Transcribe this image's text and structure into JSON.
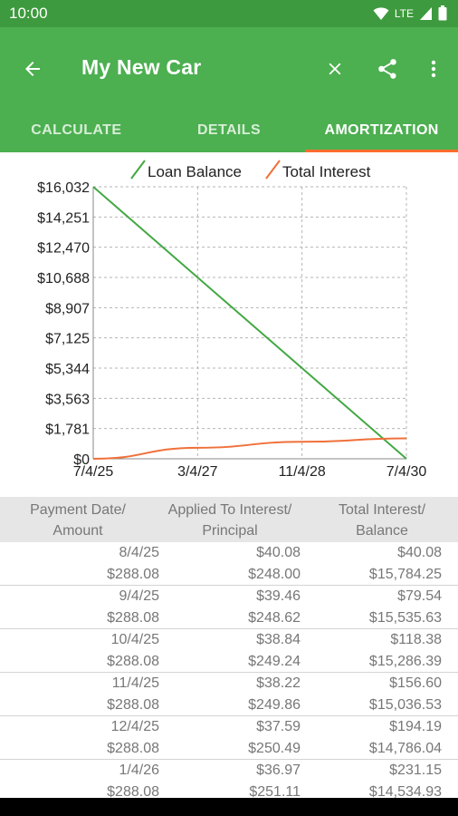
{
  "status": {
    "time": "10:00",
    "network": "LTE"
  },
  "app_bar": {
    "title": "My New Car"
  },
  "tabs": [
    {
      "label": "CALCULATE",
      "active": false
    },
    {
      "label": "DETAILS",
      "active": false
    },
    {
      "label": "AMORTIZATION",
      "active": true
    }
  ],
  "colors": {
    "primary": "#4caf50",
    "status_bar": "#3e9a3e",
    "accent": "#ff6d2d",
    "balance_line": "#43a843",
    "interest_line": "#f0703a"
  },
  "chart_data": {
    "type": "line",
    "legend": [
      "Loan Balance",
      "Total Interest"
    ],
    "legend_position": "top",
    "y_ticks": [
      "$16,032",
      "$14,251",
      "$12,470",
      "$10,688",
      "$8,907",
      "$7,125",
      "$5,344",
      "$3,563",
      "$1,781",
      "$0"
    ],
    "x_ticks": [
      "7/4/25",
      "3/4/27",
      "11/4/28",
      "7/4/30"
    ],
    "ylim": [
      0,
      16032
    ],
    "grid": true,
    "series": [
      {
        "name": "Loan Balance",
        "points": [
          [
            "7/4/25",
            16032
          ],
          [
            "7/4/30",
            0
          ]
        ]
      },
      {
        "name": "Total Interest",
        "points": [
          [
            "7/4/25",
            0
          ],
          [
            "3/4/27",
            650
          ],
          [
            "11/4/28",
            1000
          ],
          [
            "7/4/30",
            1200
          ]
        ]
      }
    ]
  },
  "table": {
    "headers": [
      {
        "line1": "Payment Date/",
        "line2": "Amount"
      },
      {
        "line1": "Applied To Interest/",
        "line2": "Principal"
      },
      {
        "line1": "Total Interest/",
        "line2": "Balance"
      }
    ],
    "rows": [
      {
        "date": "8/4/25",
        "amount": "$288.08",
        "interest": "$40.08",
        "principal": "$248.00",
        "total_interest": "$40.08",
        "balance": "$15,784.25"
      },
      {
        "date": "9/4/25",
        "amount": "$288.08",
        "interest": "$39.46",
        "principal": "$248.62",
        "total_interest": "$79.54",
        "balance": "$15,535.63"
      },
      {
        "date": "10/4/25",
        "amount": "$288.08",
        "interest": "$38.84",
        "principal": "$249.24",
        "total_interest": "$118.38",
        "balance": "$15,286.39"
      },
      {
        "date": "11/4/25",
        "amount": "$288.08",
        "interest": "$38.22",
        "principal": "$249.86",
        "total_interest": "$156.60",
        "balance": "$15,036.53"
      },
      {
        "date": "12/4/25",
        "amount": "$288.08",
        "interest": "$37.59",
        "principal": "$250.49",
        "total_interest": "$194.19",
        "balance": "$14,786.04"
      },
      {
        "date": "1/4/26",
        "amount": "$288.08",
        "interest": "$36.97",
        "principal": "$251.11",
        "total_interest": "$231.15",
        "balance": "$14,534.93"
      }
    ]
  }
}
